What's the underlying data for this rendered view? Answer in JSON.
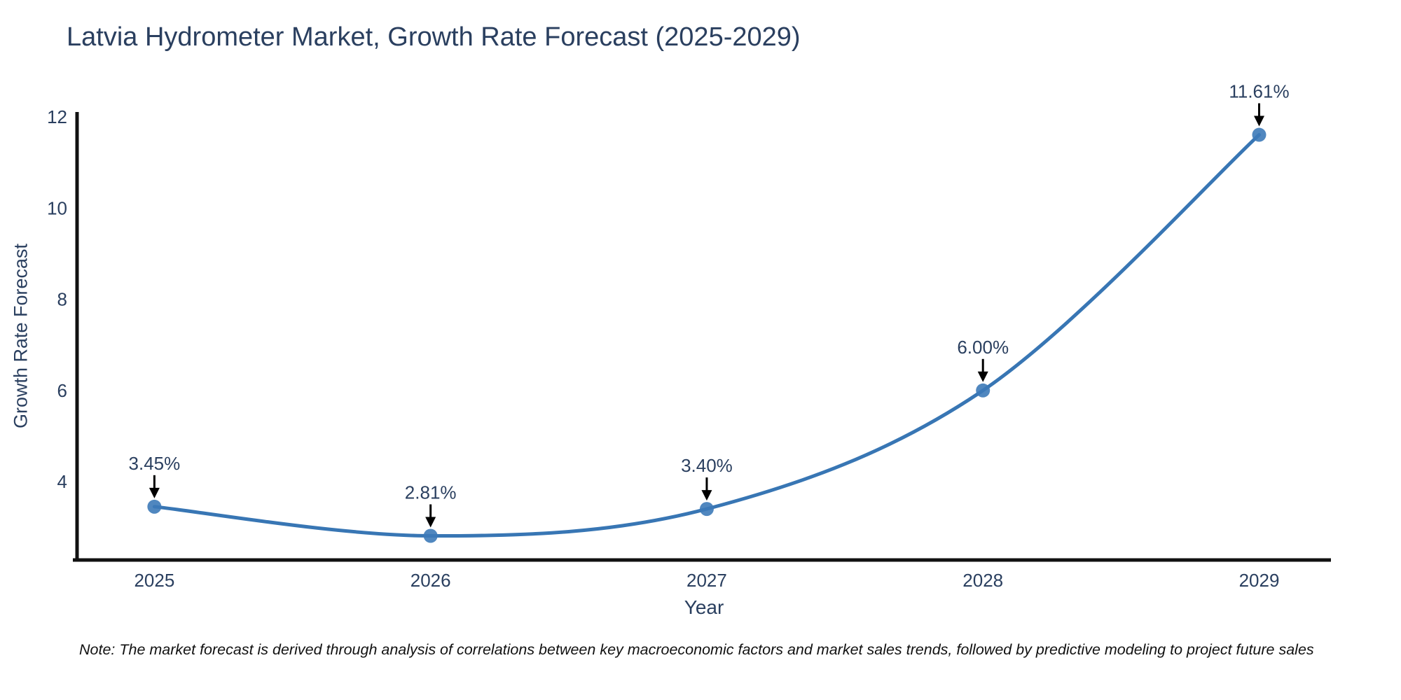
{
  "title": "Latvia Hydrometer Market, Growth Rate Forecast (2025-2029)",
  "note": "Note: The market forecast is derived through analysis of correlations between key macroeconomic factors and market sales trends, followed by predictive modeling to project future sales",
  "colors": {
    "line": "#3876b4",
    "marker": "#3d7ab8",
    "text": "#2a3f5f",
    "axis": "#111111",
    "annotation_arrow": "#000000",
    "background": "#ffffff"
  },
  "chart_data": {
    "type": "line",
    "line_shape": "spline",
    "title": "Latvia Hydrometer Market, Growth Rate Forecast (2025-2029)",
    "xlabel": "Year",
    "ylabel": "Growth Rate Forecast",
    "x": [
      2025,
      2026,
      2027,
      2028,
      2029
    ],
    "values": [
      3.45,
      2.81,
      3.4,
      6.0,
      11.61
    ],
    "labels": [
      "3.45%",
      "2.81%",
      "3.40%",
      "6.00%",
      "11.61%"
    ],
    "xticks": [
      2025,
      2026,
      2027,
      2028,
      2029
    ],
    "yticks": [
      4,
      6,
      8,
      10,
      12
    ],
    "xlim": [
      2024.72,
      2029.26
    ],
    "ylim": [
      2.28,
      12.11
    ],
    "grid": false,
    "legend": "none"
  }
}
